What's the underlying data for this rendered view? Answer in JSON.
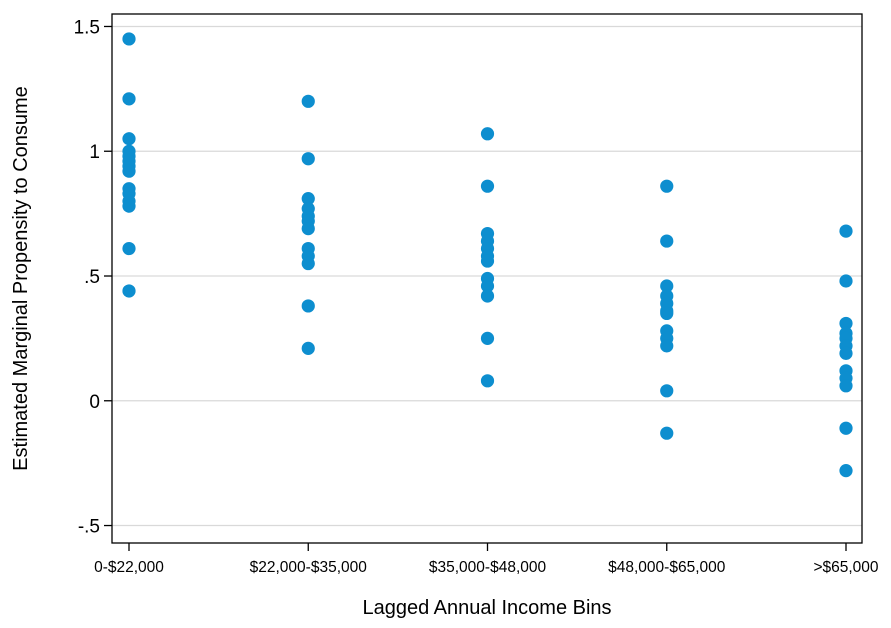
{
  "chart_data": {
    "type": "scatter",
    "title": "",
    "xlabel": "Lagged Annual Income Bins",
    "ylabel": "Estimated Marginal Propensity to Consume",
    "categories": [
      "0-$22,000",
      "$22,000-$35,000",
      "$35,000-$48,000",
      "$48,000-$65,000",
      ">$65,000"
    ],
    "ylim": [
      -0.57,
      1.55
    ],
    "yticks": [
      {
        "value": -0.5,
        "label": "-.5"
      },
      {
        "value": 0,
        "label": "0"
      },
      {
        "value": 0.5,
        "label": ".5"
      },
      {
        "value": 1,
        "label": "1"
      },
      {
        "value": 1.5,
        "label": "1.5"
      }
    ],
    "grid": true,
    "marker_color": "#0d8ecf",
    "points": [
      {
        "category": "0-$22,000",
        "values": [
          1.45,
          1.21,
          1.05,
          1.0,
          0.98,
          0.96,
          0.94,
          0.92,
          0.85,
          0.83,
          0.8,
          0.78,
          0.61,
          0.44
        ]
      },
      {
        "category": "$22,000-$35,000",
        "values": [
          1.2,
          0.97,
          0.81,
          0.77,
          0.74,
          0.72,
          0.69,
          0.61,
          0.58,
          0.55,
          0.38,
          0.21
        ]
      },
      {
        "category": "$35,000-$48,000",
        "values": [
          1.07,
          0.86,
          0.67,
          0.64,
          0.61,
          0.58,
          0.56,
          0.49,
          0.46,
          0.42,
          0.25,
          0.08
        ]
      },
      {
        "category": "$48,000-$65,000",
        "values": [
          0.86,
          0.64,
          0.46,
          0.42,
          0.39,
          0.36,
          0.35,
          0.28,
          0.25,
          0.22,
          0.04,
          -0.13
        ]
      },
      {
        "category": ">$65,000",
        "values": [
          0.68,
          0.48,
          0.31,
          0.27,
          0.25,
          0.22,
          0.19,
          0.12,
          0.09,
          0.06,
          -0.11,
          -0.28
        ]
      }
    ]
  }
}
